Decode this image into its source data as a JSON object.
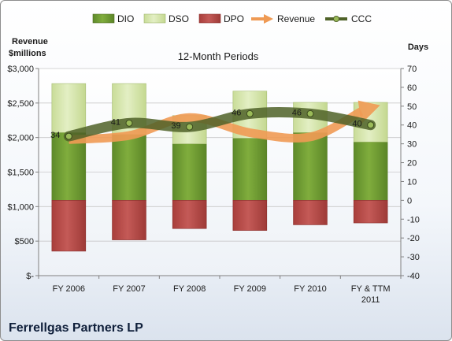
{
  "chart_data": {
    "type": "bar",
    "title": "12-Month Periods",
    "company": "Ferrellgas Partners LP",
    "left_axis_label": [
      "Revenue",
      "$millions"
    ],
    "right_axis_label": "Days",
    "categories": [
      [
        "FY 2006"
      ],
      [
        "FY 2007"
      ],
      [
        "FY 2008"
      ],
      [
        "FY 2009"
      ],
      [
        "FY 2010"
      ],
      [
        "FY & TTM",
        "2011"
      ]
    ],
    "left_axis": {
      "min": 0,
      "max": 3000,
      "step": 500,
      "tick_labels": [
        "$-",
        "$500",
        "$1,000",
        "$1,500",
        "$2,000",
        "$2,500",
        "$3,000"
      ]
    },
    "right_axis": {
      "min": -40,
      "max": 70,
      "step": 10,
      "tick_labels": [
        "-40",
        "-30",
        "-20",
        "-10",
        "0",
        "10",
        "20",
        "30",
        "40",
        "50",
        "60",
        "70"
      ]
    },
    "grid": true,
    "legend_position": "top",
    "legend": [
      {
        "name": "DIO",
        "kind": "bar"
      },
      {
        "name": "DSO",
        "kind": "bar"
      },
      {
        "name": "DPO",
        "kind": "bar"
      },
      {
        "name": "Revenue",
        "kind": "arrow"
      },
      {
        "name": "CCC",
        "kind": "line"
      }
    ],
    "series": [
      {
        "name": "DIO",
        "axis": "days",
        "values": [
          36,
          35,
          30,
          33,
          36,
          31
        ]
      },
      {
        "name": "DSO",
        "axis": "days",
        "values": [
          26,
          27,
          15,
          25,
          16,
          21
        ]
      },
      {
        "name": "DPO",
        "axis": "days",
        "values": [
          -27,
          -21,
          -15,
          -16,
          -13,
          -12
        ]
      },
      {
        "name": "Revenue",
        "axis": "millions",
        "values": [
          1970,
          2030,
          2290,
          2070,
          2010,
          2400
        ]
      },
      {
        "name": "CCC",
        "axis": "days",
        "values": [
          34,
          41,
          39,
          46,
          46,
          40
        ]
      }
    ],
    "data_labels": [
      "34",
      "41",
      "39",
      "46",
      "46",
      "40"
    ],
    "colors": {
      "DIO": "#77a237",
      "DSO": "#d8e8b2",
      "DPO": "#c0504d",
      "Revenue": "#ef9a54",
      "CCC": "#4f6228",
      "CCC_marker": "#9bbb59"
    }
  }
}
